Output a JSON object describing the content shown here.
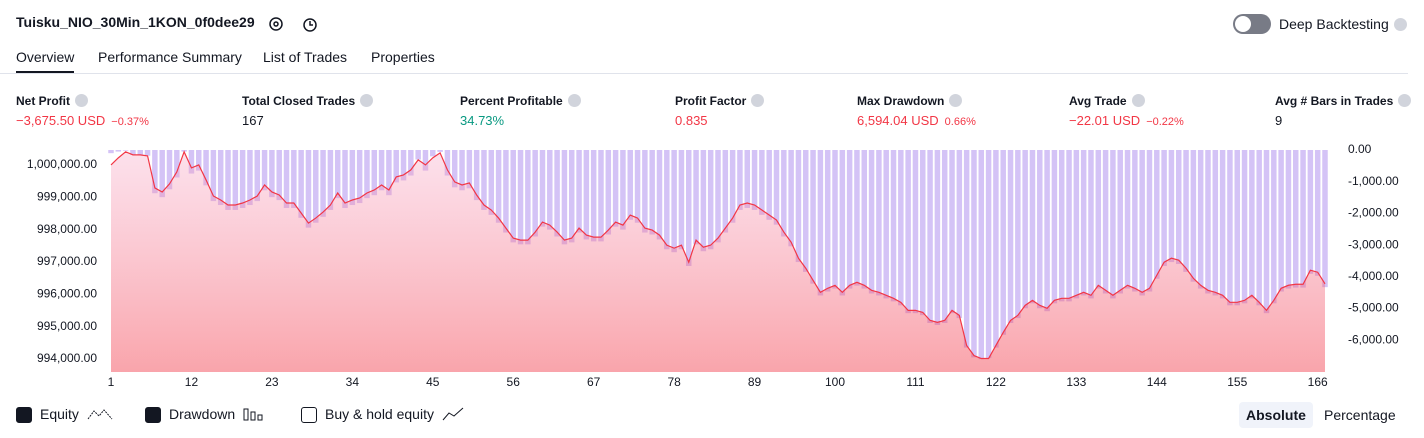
{
  "header": {
    "title": "Tuisku_NIO_30Min_1KON_0f0dee29",
    "deep_backtesting": "Deep Backtesting"
  },
  "tabs": [
    "Overview",
    "Performance Summary",
    "List of Trades",
    "Properties"
  ],
  "metrics": [
    {
      "label": "Net Profit",
      "value": "−3,675.50 USD",
      "change": "−0.37%"
    },
    {
      "label": "Total Closed Trades",
      "value": "167"
    },
    {
      "label": "Percent Profitable",
      "value": "34.73%"
    },
    {
      "label": "Profit Factor",
      "value": "0.835"
    },
    {
      "label": "Max Drawdown",
      "value": "6,594.04 USD",
      "change": "0.66%"
    },
    {
      "label": "Avg Trade",
      "value": "−22.01 USD",
      "change": "−0.22%"
    },
    {
      "label": "Avg # Bars in Trades",
      "value": "9"
    }
  ],
  "controls": {
    "buy_hold": "Buy & hold equity",
    "absolute": "Absolute",
    "percentage": "Percentage"
  },
  "chart_data": {
    "type": "line",
    "x": [
      1,
      2,
      3,
      4,
      5,
      6,
      7,
      8,
      9,
      10,
      11,
      12,
      13,
      14,
      15,
      16,
      17,
      18,
      19,
      20,
      21,
      22,
      23,
      24,
      25,
      26,
      27,
      28,
      29,
      30,
      31,
      32,
      33,
      34,
      35,
      36,
      37,
      38,
      39,
      40,
      41,
      42,
      43,
      44,
      45,
      46,
      47,
      48,
      49,
      50,
      51,
      52,
      53,
      54,
      55,
      56,
      57,
      58,
      59,
      60,
      61,
      62,
      63,
      64,
      65,
      66,
      67,
      68,
      69,
      70,
      71,
      72,
      73,
      74,
      75,
      76,
      77,
      78,
      79,
      80,
      81,
      82,
      83,
      84,
      85,
      86,
      87,
      88,
      89,
      90,
      91,
      92,
      93,
      94,
      95,
      96,
      97,
      98,
      99,
      100,
      101,
      102,
      103,
      104,
      105,
      106,
      107,
      108,
      109,
      110,
      111,
      112,
      113,
      114,
      115,
      116,
      117,
      118,
      119,
      120,
      121,
      122,
      123,
      124,
      125,
      126,
      127,
      128,
      129,
      130,
      131,
      132,
      133,
      134,
      135,
      136,
      137,
      138,
      139,
      140,
      141,
      142,
      143,
      144,
      145,
      146,
      147,
      148,
      149,
      150,
      151,
      152,
      153,
      154,
      155,
      156,
      157,
      158,
      159,
      160,
      161,
      162,
      163,
      164,
      165,
      166,
      167
    ],
    "series": [
      {
        "name": "Equity",
        "color": "#f23645",
        "values": [
          1000000,
          1000217,
          1000403,
          1000310,
          1000310,
          1000279,
          999287,
          999163,
          999411,
          999783,
          1000403,
          999907,
          1000000,
          999535,
          999039,
          998915,
          998760,
          998760,
          998822,
          998915,
          999039,
          999380,
          999163,
          999070,
          998822,
          998822,
          998512,
          998202,
          998357,
          998543,
          998760,
          999132,
          998822,
          998915,
          998977,
          999132,
          999225,
          999380,
          999225,
          999628,
          999690,
          999845,
          1000155,
          1000000,
          1000217,
          1000372,
          999845,
          999473,
          999380,
          999442,
          999070,
          998760,
          998605,
          998357,
          998047,
          997737,
          997675,
          997675,
          997923,
          998233,
          998140,
          997923,
          997675,
          997737,
          998047,
          997830,
          997768,
          997768,
          997985,
          998233,
          998140,
          998450,
          998357,
          998047,
          997985,
          997830,
          997520,
          997427,
          997520,
          996993,
          997675,
          997458,
          997520,
          997737,
          998047,
          998357,
          998760,
          998822,
          998760,
          998605,
          998450,
          998295,
          997923,
          997613,
          997117,
          996807,
          996435,
          996063,
          996187,
          996280,
          996063,
          996280,
          996373,
          996280,
          996125,
          996063,
          995970,
          995877,
          995753,
          995505,
          995505,
          995443,
          995195,
          995133,
          995195,
          995505,
          995350,
          994420,
          994110,
          994017,
          994017,
          994420,
          994823,
          995195,
          995350,
          995660,
          995815,
          995660,
          995567,
          995815,
          995877,
          995877,
          995970,
          996063,
          995970,
          996280,
          996125,
          995970,
          996125,
          996280,
          996187,
          996063,
          996187,
          996590,
          996993,
          997117,
          997055,
          996807,
          996497,
          996280,
          996125,
          996063,
          995970,
          995753,
          995753,
          995815,
          995970,
          995753,
          995505,
          995815,
          996187,
          996280,
          996311,
          996311,
          996745,
          996683,
          996324.5
        ]
      },
      {
        "name": "Drawdown",
        "color": "#cdb8f5",
        "axis": "y2",
        "values": [
          -100,
          -50,
          -20,
          -150,
          -150,
          -180,
          -1363,
          -1487,
          -1239,
          -867,
          -50,
          -743,
          -650,
          -1115,
          -1611,
          -1735,
          -1890,
          -1890,
          -1828,
          -1735,
          -1611,
          -1270,
          -1487,
          -1580,
          -1828,
          -1828,
          -2138,
          -2448,
          -2293,
          -2107,
          -1890,
          -1518,
          -1828,
          -1735,
          -1673,
          -1518,
          -1425,
          -1270,
          -1425,
          -1022,
          -960,
          -805,
          -300,
          -650,
          -200,
          -60,
          -805,
          -1177,
          -1270,
          -1208,
          -1580,
          -1890,
          -2045,
          -2293,
          -2603,
          -2913,
          -2975,
          -2975,
          -2727,
          -2417,
          -2510,
          -2727,
          -2975,
          -2913,
          -2603,
          -2820,
          -2882,
          -2882,
          -2665,
          -2417,
          -2510,
          -2200,
          -2293,
          -2603,
          -2665,
          -2820,
          -3130,
          -3223,
          -3130,
          -3657,
          -2975,
          -3192,
          -3130,
          -2913,
          -2603,
          -2293,
          -1890,
          -1828,
          -1890,
          -2045,
          -2200,
          -2355,
          -2727,
          -3037,
          -3533,
          -3843,
          -4215,
          -4587,
          -4463,
          -4370,
          -4587,
          -4370,
          -4277,
          -4370,
          -4525,
          -4587,
          -4680,
          -4773,
          -4897,
          -5145,
          -5145,
          -5207,
          -5455,
          -5517,
          -5455,
          -5145,
          -5300,
          -6230,
          -6540,
          -6594.04,
          -6560,
          -6230,
          -5827,
          -5455,
          -5300,
          -4990,
          -4835,
          -4990,
          -5083,
          -4835,
          -4773,
          -4773,
          -4680,
          -4587,
          -4680,
          -4370,
          -4525,
          -4680,
          -4525,
          -4370,
          -4463,
          -4587,
          -4463,
          -4060,
          -3657,
          -3533,
          -3595,
          -3843,
          -4153,
          -4370,
          -4525,
          -4587,
          -4680,
          -4897,
          -4897,
          -4835,
          -4680,
          -4897,
          -5145,
          -4835,
          -4463,
          -4370,
          -4339,
          -4339,
          -3905,
          -3967,
          -4325
        ]
      }
    ],
    "xlim": [
      1,
      167
    ],
    "xticks": [
      1,
      12,
      23,
      34,
      45,
      56,
      67,
      78,
      89,
      100,
      111,
      122,
      133,
      144,
      155,
      166
    ],
    "ylim": [
      993600,
      1000460
    ],
    "yticks": [
      {
        "value": 1000000,
        "label": "1,000,000.00"
      },
      {
        "value": 999000,
        "label": "999,000.00"
      },
      {
        "value": 998000,
        "label": "998,000.00"
      },
      {
        "value": 997000,
        "label": "997,000.00"
      },
      {
        "value": 996000,
        "label": "996,000.00"
      },
      {
        "value": 995000,
        "label": "995,000.00"
      },
      {
        "value": 994000,
        "label": "994,000.00"
      }
    ],
    "y2lim": [
      -7000,
      0
    ],
    "y2ticks": [
      {
        "value": 0,
        "label": "0.00"
      },
      {
        "value": -1000,
        "label": "-1,000.00"
      },
      {
        "value": -2000,
        "label": "-2,000.00"
      },
      {
        "value": -3000,
        "label": "-3,000.00"
      },
      {
        "value": -4000,
        "label": "-4,000.00"
      },
      {
        "value": -5000,
        "label": "-5,000.00"
      },
      {
        "value": -6000,
        "label": "-6,000.00"
      }
    ]
  }
}
